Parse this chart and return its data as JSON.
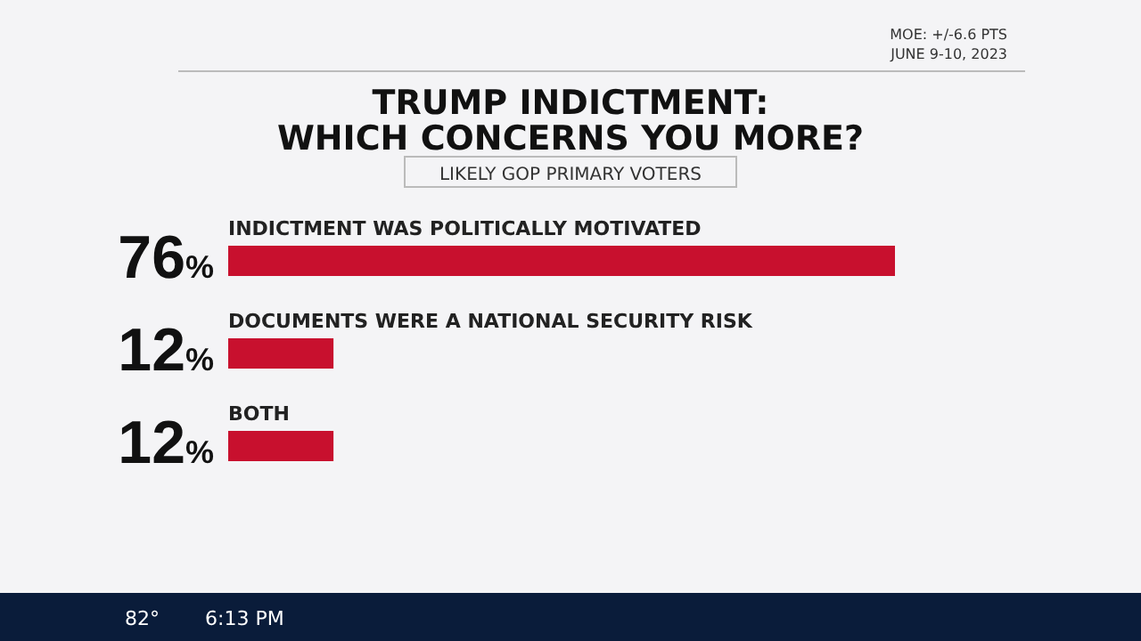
{
  "chart_data": {
    "type": "bar",
    "orientation": "horizontal",
    "title": "TRUMP INDICTMENT:\nWHICH CONCERNS YOU MORE?",
    "subtitle": "LIKELY GOP PRIMARY VOTERS",
    "categories": [
      "INDICTMENT WAS POLITICALLY MOTIVATED",
      "DOCUMENTS WERE A NATIONAL SECURITY RISK",
      "BOTH"
    ],
    "values": [
      76,
      12,
      12
    ],
    "color": "#c8102e",
    "value_labels": [
      "76%",
      "12%",
      "12%"
    ],
    "annotations": [
      "MOE: +/-6.6 PTS",
      "JUNE 9-10, 2023",
      "82°",
      "6:13 PM"
    ]
  }
}
